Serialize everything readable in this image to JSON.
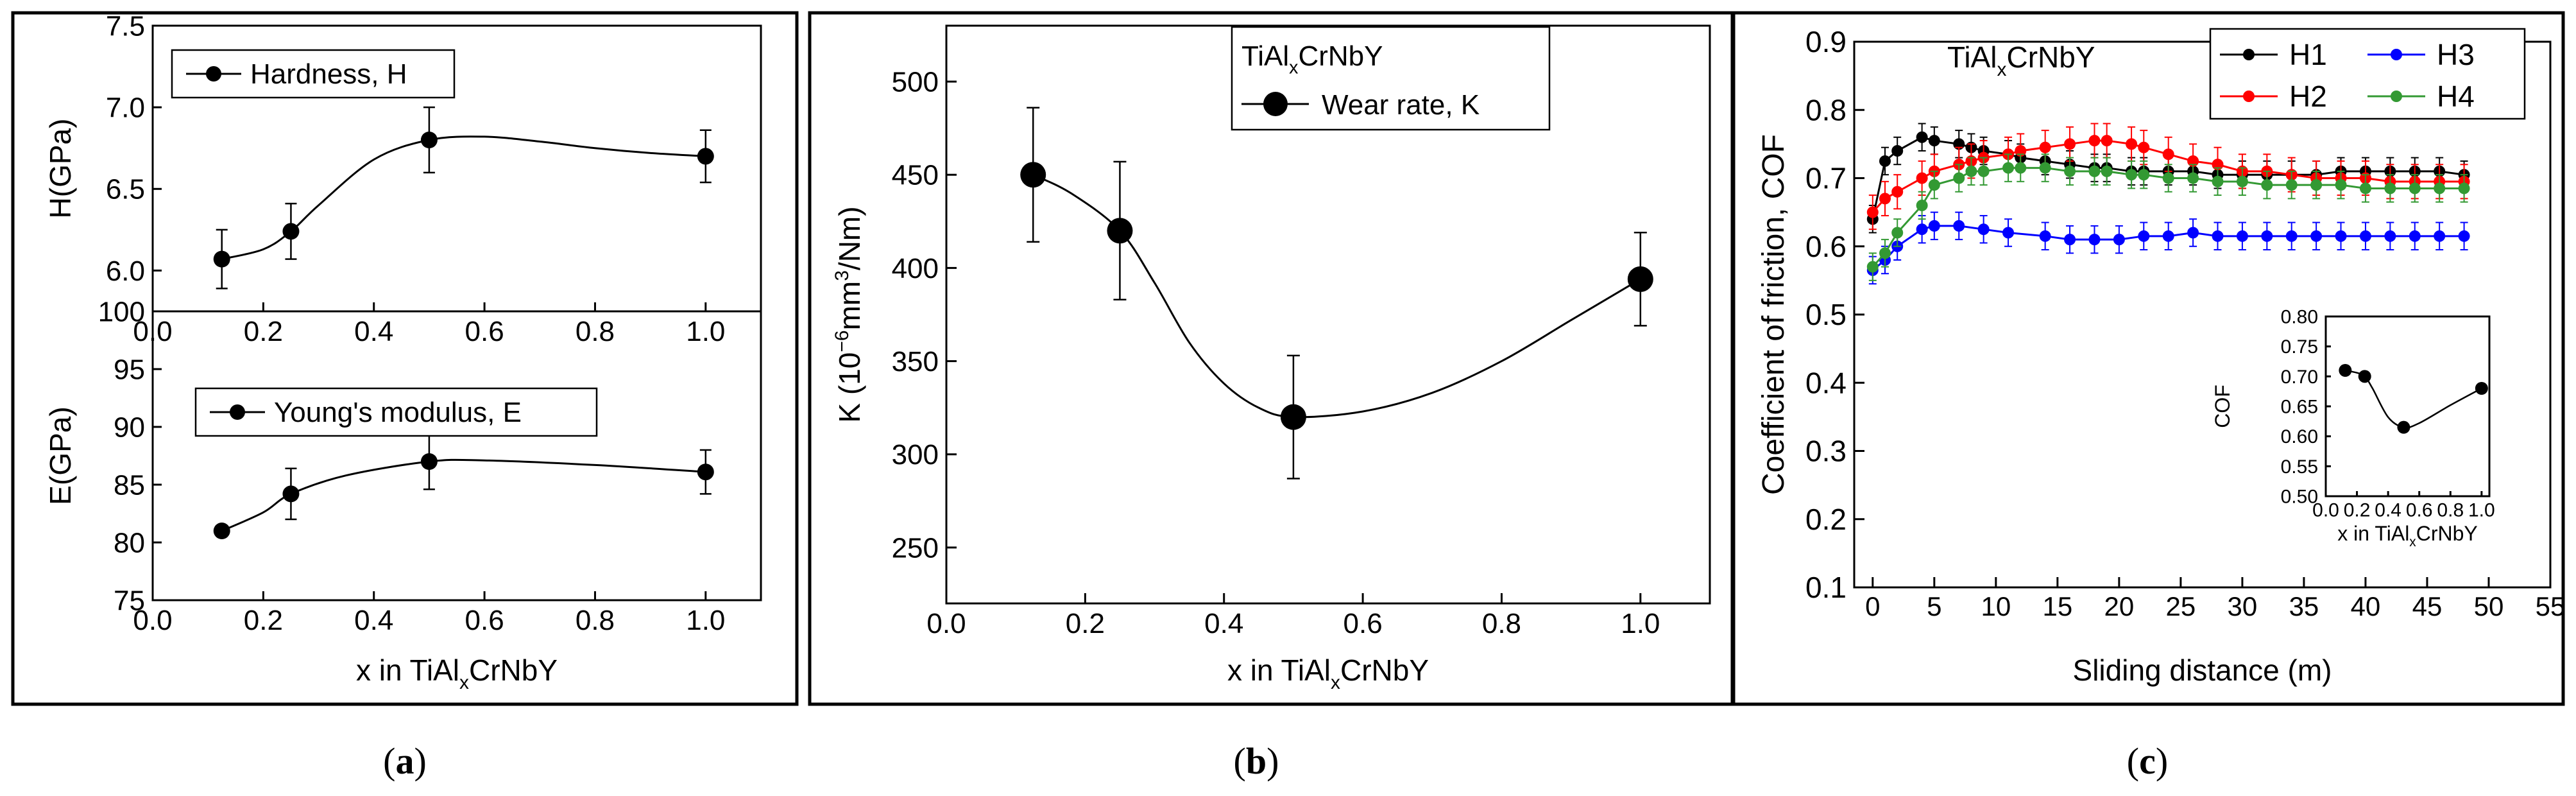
{
  "chart_data": [
    {
      "panel": "a",
      "type": "line",
      "panel_label": "(a)",
      "xlabel_prefix": "x in TiAl",
      "xlabel_sub": "x",
      "xlabel_suffix": "CrNbY",
      "subplots": [
        {
          "name": "hardness",
          "ylabel": "H(GPa)",
          "xlim": [
            0.0,
            1.1
          ],
          "ylim": [
            5.75,
            7.5
          ],
          "yticks": [
            "6.0",
            "6.5",
            "7.0",
            "7.5"
          ],
          "ytick_values": [
            6.0,
            6.5,
            7.0,
            7.5
          ],
          "xticks": [
            "0.0",
            "0.2",
            "0.4",
            "0.6",
            "0.8",
            "1.0"
          ],
          "xtick_values": [
            0.0,
            0.2,
            0.4,
            0.6,
            0.8,
            1.0
          ],
          "legend": "Hardness, H",
          "x": [
            0.125,
            0.25,
            0.5,
            1.0
          ],
          "y": [
            6.07,
            6.24,
            6.8,
            6.7
          ],
          "err": [
            0.18,
            0.17,
            0.2,
            0.16
          ],
          "curve_x": [
            0.125,
            0.2,
            0.25,
            0.3,
            0.4,
            0.5,
            0.6,
            0.7,
            0.8,
            0.9,
            1.0
          ],
          "curve_y": [
            6.07,
            6.13,
            6.24,
            6.4,
            6.68,
            6.8,
            6.82,
            6.79,
            6.75,
            6.72,
            6.7
          ]
        },
        {
          "name": "modulus",
          "ylabel": "E(GPa)",
          "xlim": [
            0.0,
            1.1
          ],
          "ylim": [
            75,
            100
          ],
          "yticks": [
            "75",
            "80",
            "85",
            "90",
            "95",
            "100"
          ],
          "ytick_values": [
            75,
            80,
            85,
            90,
            95,
            100
          ],
          "xticks": [
            "0.0",
            "0.2",
            "0.4",
            "0.6",
            "0.8",
            "1.0"
          ],
          "xtick_values": [
            0.0,
            0.2,
            0.4,
            0.6,
            0.8,
            1.0
          ],
          "legend": "Young's modulus, E",
          "x": [
            0.125,
            0.25,
            0.5,
            1.0
          ],
          "y": [
            81.0,
            84.2,
            87.0,
            86.1
          ],
          "err": [
            0.0,
            2.2,
            2.4,
            1.9
          ],
          "curve_x": [
            0.125,
            0.2,
            0.25,
            0.35,
            0.5,
            0.6,
            0.8,
            1.0
          ],
          "curve_y": [
            81.0,
            82.6,
            84.2,
            85.8,
            87.0,
            87.1,
            86.7,
            86.1
          ]
        }
      ]
    },
    {
      "panel": "b",
      "type": "line",
      "panel_label": "(b)",
      "ylabel_prefix": "K (10",
      "ylabel_sup1": "−6",
      "ylabel_mid": "mm",
      "ylabel_sup2": "3",
      "ylabel_suffix": "/Nm)",
      "xlabel_prefix": "x in TiAl",
      "xlabel_sub": "x",
      "xlabel_suffix": "CrNbY",
      "title_prefix": "TiAl",
      "title_sub": "x",
      "title_suffix": "CrNbY",
      "legend": "Wear rate, K",
      "xlim": [
        0.0,
        1.1
      ],
      "ylim": [
        220,
        530
      ],
      "yticks": [
        "250",
        "300",
        "350",
        "400",
        "450",
        "500"
      ],
      "ytick_values": [
        250,
        300,
        350,
        400,
        450,
        500
      ],
      "xticks": [
        "0.0",
        "0.2",
        "0.4",
        "0.6",
        "0.8",
        "1.0"
      ],
      "xtick_values": [
        0.0,
        0.2,
        0.4,
        0.6,
        0.8,
        1.0
      ],
      "x": [
        0.125,
        0.25,
        0.5,
        1.0
      ],
      "y": [
        450,
        420,
        320,
        394
      ],
      "err": [
        36,
        37,
        33,
        25
      ],
      "curve_x": [
        0.125,
        0.18,
        0.25,
        0.3,
        0.35,
        0.4,
        0.45,
        0.5,
        0.6,
        0.7,
        0.8,
        0.9,
        1.0
      ],
      "curve_y": [
        450,
        440,
        420,
        392,
        360,
        338,
        325,
        320,
        323,
        333,
        350,
        372,
        394
      ]
    },
    {
      "panel": "c",
      "type": "line",
      "panel_label": "(c)",
      "ylabel": "Coefficient of friction, COF",
      "xlabel": "Sliding distance (m)",
      "title_prefix": "TiAl",
      "title_sub": "x",
      "title_suffix": "CrNbY",
      "xlim": [
        -1.5,
        55
      ],
      "ylim": [
        0.1,
        0.9
      ],
      "yticks": [
        "0.1",
        "0.2",
        "0.3",
        "0.4",
        "0.5",
        "0.6",
        "0.7",
        "0.8",
        "0.9"
      ],
      "ytick_values": [
        0.1,
        0.2,
        0.3,
        0.4,
        0.5,
        0.6,
        0.7,
        0.8,
        0.9
      ],
      "xticks": [
        "0",
        "5",
        "10",
        "15",
        "20",
        "25",
        "30",
        "35",
        "40",
        "45",
        "50",
        "55"
      ],
      "xtick_values": [
        0,
        5,
        10,
        15,
        20,
        25,
        30,
        35,
        40,
        45,
        50,
        55
      ],
      "series": [
        {
          "name": "H1",
          "color": "#000000",
          "x": [
            0,
            1,
            2,
            4,
            5,
            7,
            8,
            9,
            11,
            12,
            14,
            16,
            18,
            19,
            21,
            22,
            24,
            26,
            28,
            30,
            32,
            34,
            36,
            38,
            40,
            42,
            44,
            46,
            48
          ],
          "y": [
            0.64,
            0.725,
            0.74,
            0.76,
            0.755,
            0.75,
            0.745,
            0.74,
            0.735,
            0.73,
            0.725,
            0.72,
            0.715,
            0.715,
            0.71,
            0.71,
            0.71,
            0.71,
            0.705,
            0.705,
            0.705,
            0.705,
            0.705,
            0.71,
            0.71,
            0.71,
            0.71,
            0.71,
            0.705
          ],
          "err": 0.02
        },
        {
          "name": "H2",
          "color": "#ff0000",
          "x": [
            0,
            1,
            2,
            4,
            5,
            7,
            8,
            9,
            11,
            12,
            14,
            16,
            18,
            19,
            21,
            22,
            24,
            26,
            28,
            30,
            32,
            34,
            36,
            38,
            40,
            42,
            44,
            46,
            48
          ],
          "y": [
            0.65,
            0.67,
            0.68,
            0.7,
            0.71,
            0.72,
            0.725,
            0.73,
            0.735,
            0.74,
            0.745,
            0.75,
            0.755,
            0.755,
            0.75,
            0.745,
            0.735,
            0.725,
            0.72,
            0.71,
            0.71,
            0.705,
            0.7,
            0.7,
            0.7,
            0.695,
            0.695,
            0.695,
            0.695
          ],
          "err": 0.025
        },
        {
          "name": "H3",
          "color": "#0000ff",
          "x": [
            0,
            1,
            2,
            4,
            5,
            7,
            9,
            11,
            14,
            16,
            18,
            20,
            22,
            24,
            26,
            28,
            30,
            32,
            34,
            36,
            38,
            40,
            42,
            44,
            46,
            48
          ],
          "y": [
            0.565,
            0.58,
            0.6,
            0.625,
            0.63,
            0.63,
            0.625,
            0.62,
            0.615,
            0.61,
            0.61,
            0.61,
            0.615,
            0.615,
            0.62,
            0.615,
            0.615,
            0.615,
            0.615,
            0.615,
            0.615,
            0.615,
            0.615,
            0.615,
            0.615,
            0.615
          ],
          "err": 0.02
        },
        {
          "name": "H4",
          "color": "#339933",
          "x": [
            0,
            1,
            2,
            4,
            5,
            7,
            8,
            9,
            11,
            12,
            14,
            16,
            18,
            19,
            21,
            22,
            24,
            26,
            28,
            30,
            32,
            34,
            36,
            38,
            40,
            42,
            44,
            46,
            48
          ],
          "y": [
            0.57,
            0.59,
            0.62,
            0.66,
            0.69,
            0.7,
            0.71,
            0.71,
            0.715,
            0.715,
            0.715,
            0.71,
            0.71,
            0.71,
            0.705,
            0.705,
            0.7,
            0.7,
            0.695,
            0.695,
            0.69,
            0.69,
            0.69,
            0.69,
            0.685,
            0.685,
            0.685,
            0.685,
            0.685
          ],
          "err": 0.02
        }
      ],
      "inset": {
        "ylabel": "COF",
        "xlabel_prefix": "x in TiAl",
        "xlabel_sub": "x",
        "xlabel_suffix": "CrNbY",
        "xlim": [
          0.0,
          1.05
        ],
        "ylim": [
          0.5,
          0.8
        ],
        "yticks": [
          "0.50",
          "0.55",
          "0.60",
          "0.65",
          "0.70",
          "0.75",
          "0.80"
        ],
        "ytick_values": [
          0.5,
          0.55,
          0.6,
          0.65,
          0.7,
          0.75,
          0.8
        ],
        "xticks": [
          "0.0",
          "0.2",
          "0.4",
          "0.6",
          "0.8",
          "1.0"
        ],
        "xtick_values": [
          0.0,
          0.2,
          0.4,
          0.6,
          0.8,
          1.0
        ],
        "x": [
          0.125,
          0.25,
          0.5,
          1.0
        ],
        "y": [
          0.71,
          0.7,
          0.615,
          0.68
        ],
        "curve_x": [
          0.125,
          0.2,
          0.25,
          0.3,
          0.4,
          0.5,
          0.6,
          0.8,
          1.0
        ],
        "curve_y": [
          0.71,
          0.706,
          0.7,
          0.68,
          0.632,
          0.615,
          0.622,
          0.652,
          0.68
        ]
      }
    }
  ]
}
